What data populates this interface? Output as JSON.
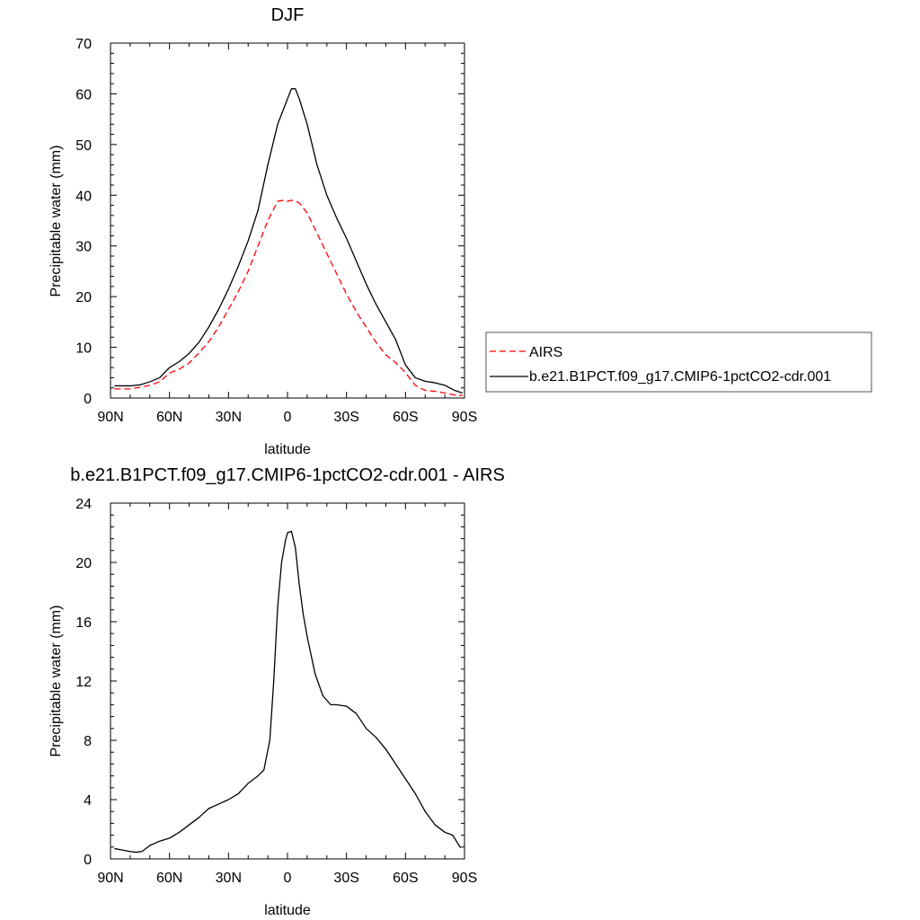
{
  "chart_data": [
    {
      "type": "line",
      "title": "DJF",
      "xlabel": "latitude",
      "ylabel": "Precipitable water (mm)",
      "xlim": [
        -90,
        90
      ],
      "ylim": [
        0,
        70
      ],
      "x_tick_values": [
        -90,
        -60,
        -30,
        0,
        30,
        60,
        90
      ],
      "x_tick_labels": [
        "90N",
        "60N",
        "30N",
        "0",
        "30S",
        "60S",
        "90S"
      ],
      "y_tick_values": [
        0,
        10,
        20,
        30,
        40,
        50,
        60,
        70
      ],
      "y_tick_labels": [
        "0",
        "10",
        "20",
        "30",
        "40",
        "50",
        "60",
        "70"
      ],
      "grid": false,
      "legend": {
        "placement": "right",
        "entries": [
          "AIRS",
          "b.e21.B1PCT.f09_g17.CMIP6-1pctCO2-cdr.001"
        ]
      },
      "series": [
        {
          "name": "AIRS",
          "color": "#ff0000",
          "style": "dashed",
          "x": [
            -88,
            -80,
            -75,
            -70,
            -65,
            -60,
            -55,
            -50,
            -45,
            -40,
            -35,
            -30,
            -25,
            -20,
            -15,
            -10,
            -5,
            -2,
            0,
            2,
            4,
            6,
            10,
            15,
            20,
            25,
            30,
            35,
            40,
            45,
            50,
            55,
            60,
            65,
            70,
            75,
            80,
            85,
            89
          ],
          "y": [
            1.8,
            1.8,
            2.1,
            2.5,
            3.2,
            4.9,
            5.7,
            6.9,
            8.9,
            11.1,
            14.0,
            17.5,
            21.0,
            25.0,
            30.0,
            35.0,
            38.8,
            39.0,
            38.8,
            39.0,
            38.8,
            38.5,
            36.5,
            32.5,
            28.5,
            24.5,
            20.5,
            17.0,
            14.0,
            11.0,
            8.5,
            7.0,
            5.0,
            2.5,
            1.5,
            1.3,
            1.0,
            0.6,
            0.5
          ]
        },
        {
          "name": "b.e21.B1PCT.f09_g17.CMIP6-1pctCO2-cdr.001",
          "color": "#000000",
          "style": "solid",
          "x": [
            -88,
            -80,
            -75,
            -70,
            -65,
            -60,
            -55,
            -50,
            -45,
            -40,
            -35,
            -30,
            -25,
            -20,
            -15,
            -10,
            -5,
            -2,
            0,
            2,
            4,
            6,
            10,
            15,
            20,
            25,
            30,
            35,
            40,
            45,
            50,
            55,
            60,
            65,
            70,
            75,
            80,
            85,
            89
          ],
          "y": [
            2.4,
            2.4,
            2.6,
            3.2,
            4.0,
            6.0,
            7.2,
            8.8,
            11.0,
            14.0,
            17.5,
            21.5,
            26.0,
            31.0,
            37.0,
            46.0,
            54.0,
            57.0,
            59.0,
            61.0,
            61.0,
            59.0,
            54.0,
            46.0,
            40.0,
            35.5,
            31.5,
            27.0,
            22.5,
            18.5,
            15.0,
            11.5,
            6.5,
            4.0,
            3.3,
            3.0,
            2.5,
            1.5,
            1.0
          ]
        }
      ]
    },
    {
      "type": "line",
      "title": "b.e21.B1PCT.f09_g17.CMIP6-1pctCO2-cdr.001 - AIRS",
      "xlabel": "latitude",
      "ylabel": "Precipitable water (mm)",
      "xlim": [
        -90,
        90
      ],
      "ylim": [
        0,
        24
      ],
      "x_tick_values": [
        -90,
        -60,
        -30,
        0,
        30,
        60,
        90
      ],
      "x_tick_labels": [
        "90N",
        "60N",
        "30N",
        "0",
        "30S",
        "60S",
        "90S"
      ],
      "y_tick_values": [
        0,
        4,
        8,
        12,
        16,
        20,
        24
      ],
      "y_tick_labels": [
        "0",
        "4",
        "8",
        "12",
        "16",
        "20",
        "24"
      ],
      "grid": false,
      "series": [
        {
          "color": "#000000",
          "style": "solid",
          "x": [
            -88,
            -84,
            -80,
            -77,
            -74,
            -70,
            -65,
            -60,
            -55,
            -50,
            -45,
            -40,
            -35,
            -30,
            -25,
            -20,
            -15,
            -12,
            -9,
            -7,
            -5,
            -3,
            -1,
            0,
            2,
            4,
            6,
            8,
            10,
            14,
            18,
            22,
            25,
            30,
            35,
            40,
            45,
            50,
            55,
            60,
            65,
            70,
            75,
            80,
            84,
            88
          ],
          "y": [
            0.7,
            0.6,
            0.5,
            0.45,
            0.5,
            0.9,
            1.2,
            1.4,
            1.8,
            2.3,
            2.8,
            3.4,
            3.7,
            4.0,
            4.4,
            5.1,
            5.6,
            6.0,
            8.0,
            12.0,
            17.0,
            20.0,
            21.5,
            22.0,
            22.1,
            21.0,
            18.5,
            16.5,
            15.0,
            12.5,
            11.0,
            10.4,
            10.4,
            10.3,
            9.8,
            8.8,
            8.2,
            7.4,
            6.4,
            5.4,
            4.4,
            3.2,
            2.3,
            1.8,
            1.6,
            0.75
          ]
        }
      ]
    }
  ]
}
